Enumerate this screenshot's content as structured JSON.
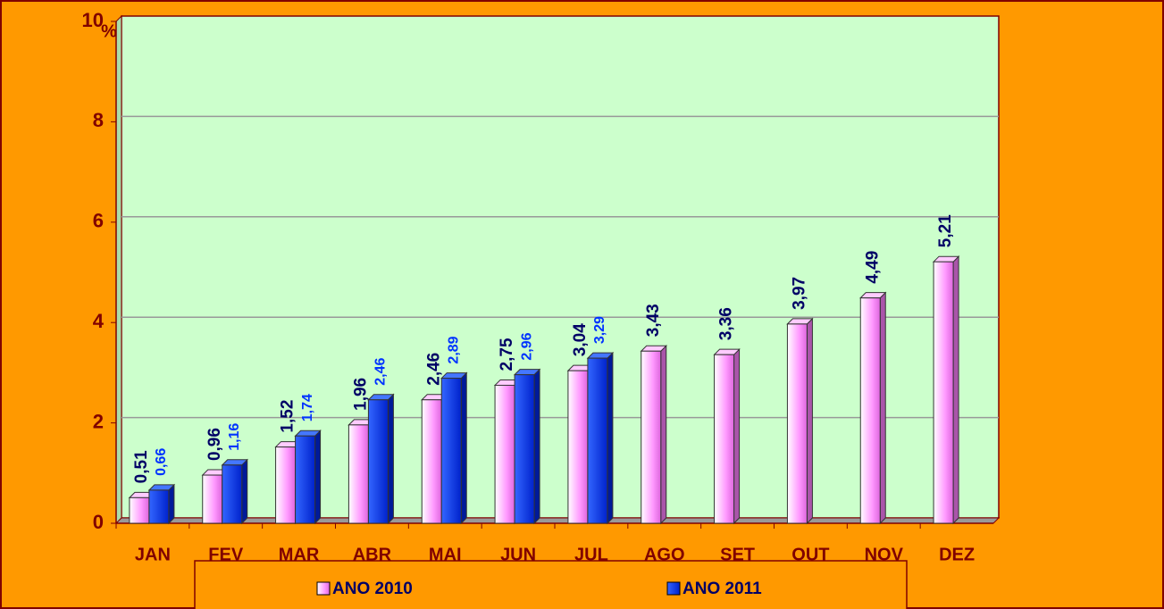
{
  "chart_data": {
    "type": "bar",
    "y_axis_label": "%",
    "categories": [
      "JAN",
      "FEV",
      "MAR",
      "ABR",
      "MAI",
      "JUN",
      "JUL",
      "AGO",
      "SET",
      "OUT",
      "NOV",
      "DEZ"
    ],
    "series": [
      {
        "name": "ANO 2010",
        "color": "#ff99ff",
        "label_color": "#000066",
        "values": [
          0.51,
          0.96,
          1.52,
          1.96,
          2.46,
          2.75,
          3.04,
          3.43,
          3.36,
          3.97,
          4.49,
          5.21
        ],
        "value_labels": [
          "0,51",
          "0,96",
          "1,52",
          "1,96",
          "2,46",
          "2,75",
          "3,04",
          "3,43",
          "3,36",
          "3,97",
          "4,49",
          "5,21"
        ]
      },
      {
        "name": "ANO 2011",
        "color": "#0033ff",
        "label_color": "#0033ff",
        "values": [
          0.66,
          1.16,
          1.74,
          2.46,
          2.89,
          2.96,
          3.29,
          null,
          null,
          null,
          null,
          null
        ],
        "value_labels": [
          "0,66",
          "1,16",
          "1,74",
          "2,46",
          "2,89",
          "2,96",
          "3,29",
          null,
          null,
          null,
          null,
          null
        ]
      }
    ],
    "ylim": [
      0,
      10
    ],
    "yticks": [
      0,
      2,
      4,
      6,
      8,
      10
    ],
    "grid": true,
    "legend": "bottom"
  }
}
